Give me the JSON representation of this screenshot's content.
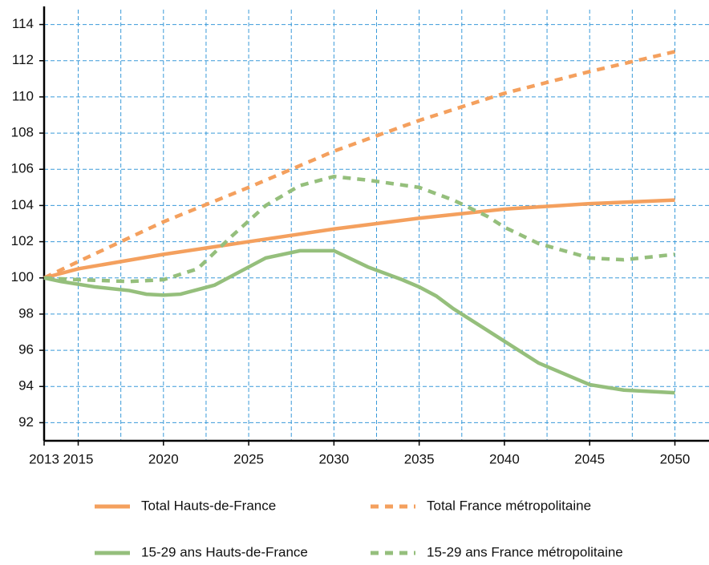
{
  "chart_data": {
    "type": "line",
    "xlim": [
      2013,
      2052
    ],
    "ylim": [
      91,
      115
    ],
    "xticks": [
      2013,
      2015,
      2020,
      2025,
      2030,
      2035,
      2040,
      2045,
      2050
    ],
    "xgrid": [
      2015,
      2017.5,
      2020,
      2022.5,
      2025,
      2027.5,
      2030,
      2032.5,
      2035,
      2037.5,
      2040,
      2042.5,
      2045,
      2047.5,
      2050
    ],
    "yticks": [
      92,
      94,
      96,
      98,
      100,
      102,
      104,
      106,
      108,
      110,
      112,
      114
    ],
    "grid": true,
    "series": [
      {
        "name": "Total Hauts-de-France",
        "color": "#f4a05e",
        "dashed": false,
        "x": [
          2013,
          2015,
          2020,
          2025,
          2030,
          2035,
          2040,
          2045,
          2050
        ],
        "values": [
          100,
          100.5,
          101.3,
          102.0,
          102.7,
          103.3,
          103.8,
          104.1,
          104.3
        ]
      },
      {
        "name": "Total France métropolitaine",
        "color": "#f4a05e",
        "dashed": true,
        "x": [
          2013,
          2015,
          2020,
          2025,
          2030,
          2035,
          2040,
          2045,
          2050
        ],
        "values": [
          100,
          100.9,
          103.1,
          105.0,
          107.0,
          108.7,
          110.2,
          111.4,
          112.5
        ]
      },
      {
        "name": "15-29 ans Hauts-de-France",
        "color": "#95bf7c",
        "dashed": false,
        "x": [
          2013,
          2014,
          2016,
          2018,
          2019,
          2020,
          2021,
          2023,
          2025,
          2026,
          2028,
          2030,
          2032,
          2034,
          2035,
          2036,
          2037,
          2040,
          2042,
          2045,
          2047,
          2050
        ],
        "values": [
          100,
          99.8,
          99.5,
          99.3,
          99.1,
          99.05,
          99.1,
          99.6,
          100.6,
          101.1,
          101.5,
          101.5,
          100.6,
          99.9,
          99.5,
          99.0,
          98.3,
          96.5,
          95.3,
          94.1,
          93.8,
          93.65
        ]
      },
      {
        "name": "15-29 ans France métropolitaine",
        "color": "#95bf7c",
        "dashed": true,
        "x": [
          2013,
          2015,
          2018,
          2020,
          2022,
          2024,
          2026,
          2028,
          2030,
          2032,
          2035,
          2037,
          2039,
          2040,
          2042,
          2045,
          2047,
          2050
        ],
        "values": [
          100,
          99.9,
          99.8,
          99.9,
          100.5,
          102.3,
          104.0,
          105.1,
          105.6,
          105.4,
          105.0,
          104.3,
          103.4,
          102.8,
          101.9,
          101.1,
          101.0,
          101.3
        ]
      }
    ]
  }
}
